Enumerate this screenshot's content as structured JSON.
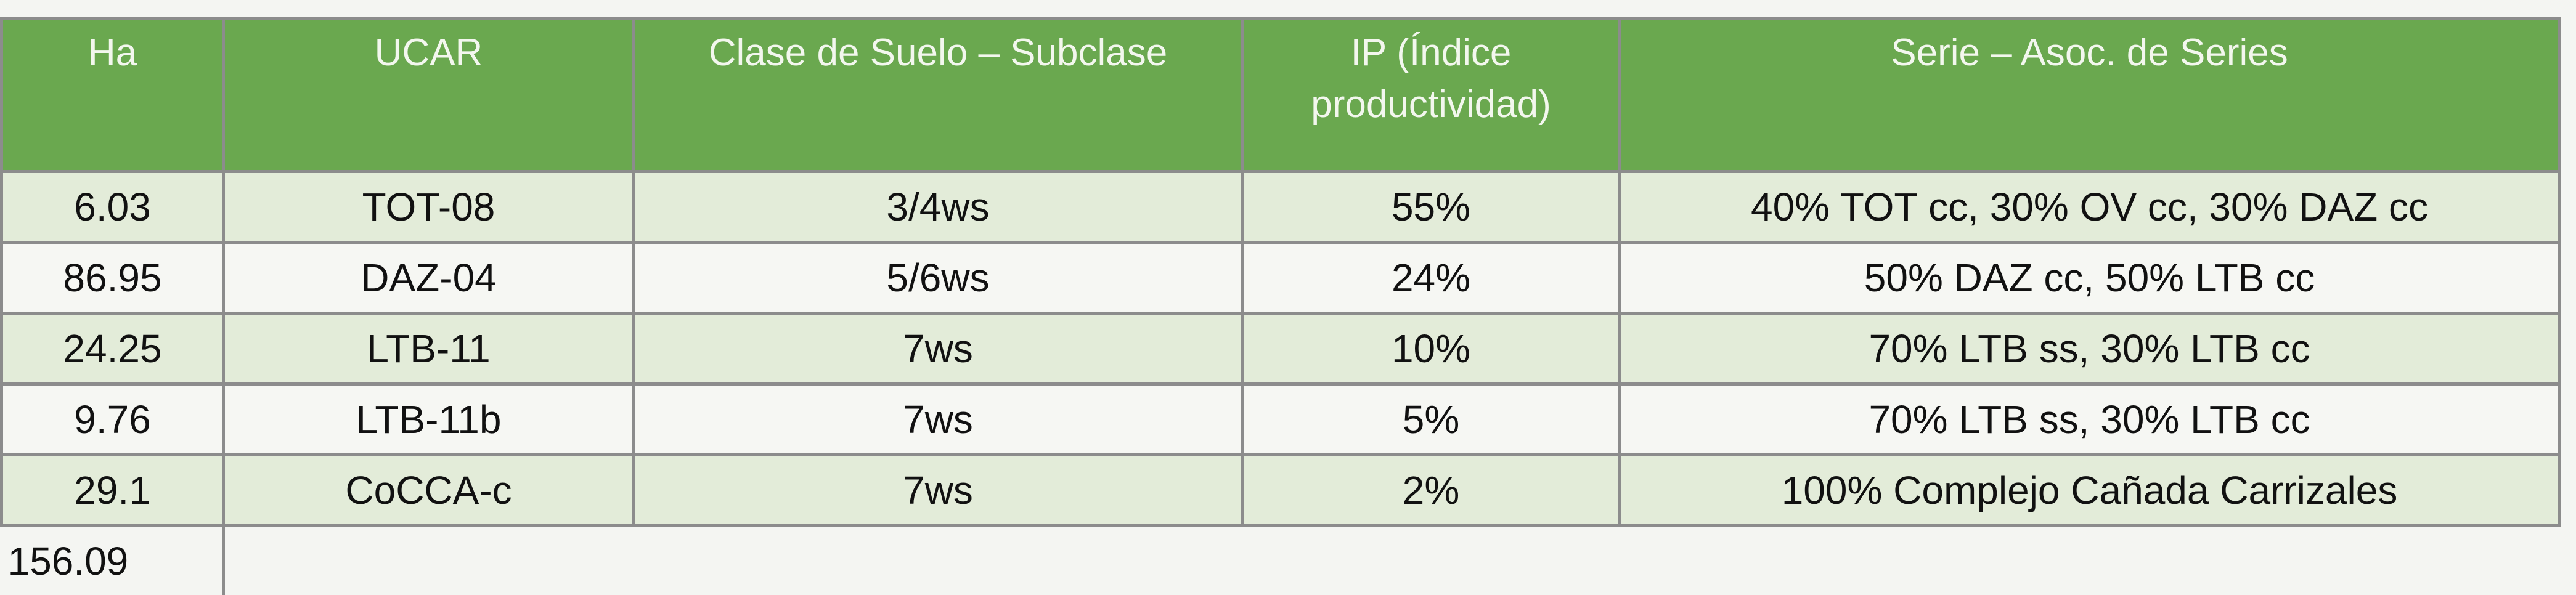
{
  "table": {
    "header": [
      "Ha",
      "UCAR",
      "Clase de Suelo – Subclase",
      "IP (Índice productividad)",
      "Serie – Asoc. de Series"
    ],
    "rows": [
      [
        "6.03",
        "TOT-08",
        "3/4ws",
        "55%",
        "40% TOT cc, 30% OV cc, 30% DAZ cc"
      ],
      [
        "86.95",
        "DAZ-04",
        "5/6ws",
        "24%",
        "50% DAZ cc, 50% LTB cc"
      ],
      [
        "24.25",
        "LTB-11",
        "7ws",
        "10%",
        "70% LTB ss, 30% LTB cc"
      ],
      [
        "9.76",
        "LTB-11b",
        "7ws",
        "5%",
        "70% LTB ss, 30% LTB cc"
      ],
      [
        "29.1",
        "CoCCA-c",
        "7ws",
        "2%",
        "100% Complejo Cañada Carrizales"
      ]
    ],
    "total": "156.09"
  }
}
